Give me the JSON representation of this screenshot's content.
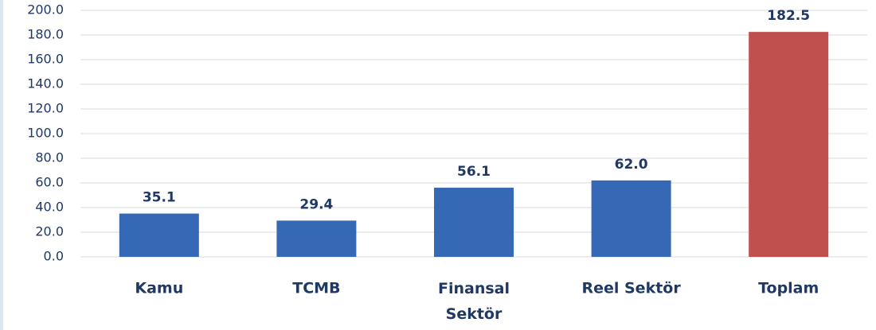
{
  "chart_data": {
    "type": "bar",
    "categories": [
      "Kamu",
      "TCMB",
      "Finansal Sektör",
      "Reel Sektör",
      "Toplam"
    ],
    "values": [
      35.1,
      29.4,
      56.1,
      62.0,
      182.5
    ],
    "value_labels": [
      "35.1",
      "29.4",
      "56.1",
      "62.0",
      "182.5"
    ],
    "colors": [
      "#3569b5",
      "#3569b5",
      "#3569b5",
      "#3569b5",
      "#c0504d"
    ],
    "ylim": [
      0,
      200
    ],
    "yticks": [
      {
        "value": 0,
        "label": "0.0"
      },
      {
        "value": 20,
        "label": "20.0"
      },
      {
        "value": 40,
        "label": "40.0"
      },
      {
        "value": 60,
        "label": "60.0"
      },
      {
        "value": 80,
        "label": "80.0"
      },
      {
        "value": 100,
        "label": "100.0"
      },
      {
        "value": 120,
        "label": "120.0"
      },
      {
        "value": 140,
        "label": "140.0"
      },
      {
        "value": 160,
        "label": "160.0"
      },
      {
        "value": 180,
        "label": "180.0"
      },
      {
        "value": 200,
        "label": "200.0"
      }
    ],
    "grid": true
  }
}
